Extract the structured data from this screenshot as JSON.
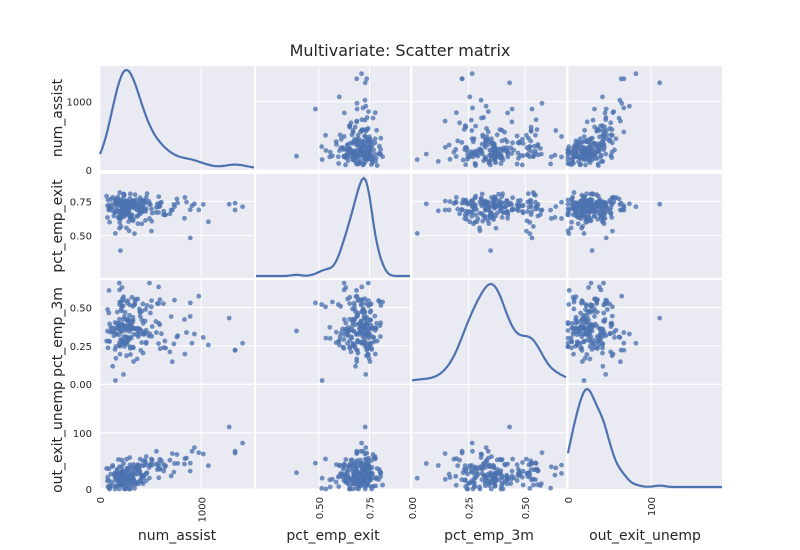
{
  "chart_data": {
    "type": "scatter",
    "title": "Multivariate: Scatter matrix",
    "variables": [
      "num_assist",
      "pct_emp_exit",
      "pct_emp_3m",
      "out_exit_unemp"
    ],
    "ranges": {
      "num_assist": [
        0,
        1520
      ],
      "pct_emp_exit": [
        0.19,
        0.95
      ],
      "pct_emp_3m": [
        0.0,
        0.68
      ],
      "out_exit_unemp": [
        0,
        185
      ]
    },
    "ticks": {
      "num_assist": {
        "values": [
          0,
          1000
        ],
        "labels": [
          "0",
          "1000"
        ]
      },
      "pct_emp_exit": {
        "values": [
          0.5,
          0.75
        ],
        "labels": [
          "0.50",
          "0.75"
        ]
      },
      "pct_emp_3m": {
        "values": [
          0.0,
          0.25,
          0.5
        ],
        "labels": [
          "0.00",
          "0.25",
          "0.50"
        ]
      },
      "out_exit_unemp": {
        "values": [
          0,
          100
        ],
        "labels": [
          "0",
          "100"
        ]
      }
    },
    "diagonal": "kde",
    "n_points": 200,
    "data": {
      "num_assist": [],
      "pct_emp_exit": [],
      "pct_emp_3m": [],
      "out_exit_unemp": []
    },
    "colors": {
      "points": "#4c72b0",
      "background": "#eaeaf2",
      "grid": "#ffffff"
    }
  }
}
